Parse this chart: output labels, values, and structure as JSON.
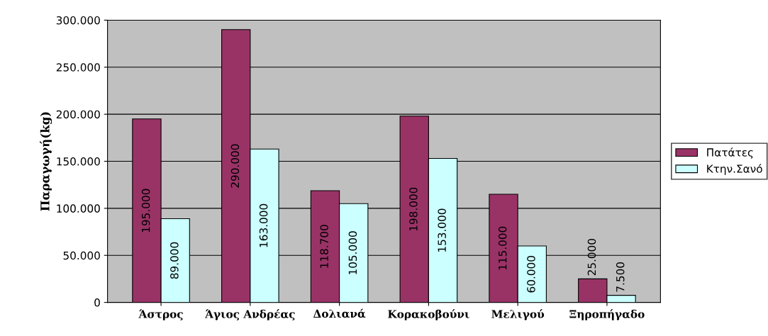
{
  "chart_data": {
    "type": "bar",
    "categories": [
      "Άστρος",
      "Άγιος Ανδρέας",
      "Δολιανά",
      "Κορακοβούνι",
      "Μελιγού",
      "Ξηροπήγαδο"
    ],
    "ylabel": "Παραγωγή(kg)",
    "series": [
      {
        "name": "Πατάτες",
        "color": "#993366",
        "values": [
          195000,
          290000,
          118700,
          198000,
          115000,
          25000
        ],
        "value_labels": [
          "195.000",
          "290.000",
          "118.700",
          "198.000",
          "115.000",
          "25.000"
        ]
      },
      {
        "name": "Κτην.Σανό",
        "color": "#ccffff",
        "values": [
          89000,
          163000,
          105000,
          153000,
          60000,
          7500
        ],
        "value_labels": [
          "89.000",
          "163.000",
          "105.000",
          "153.000",
          "60.000",
          "7.500"
        ]
      }
    ],
    "ylim": [
      0,
      300000
    ],
    "yticks": [
      0,
      {
        "value": 50000,
        "label": "50.000"
      },
      {
        "value": 100000,
        "label": "100.000"
      },
      {
        "value": 150000,
        "label": "150.000"
      },
      {
        "value": 200000,
        "label": "200.000"
      },
      {
        "value": 250000,
        "label": "250.000"
      },
      {
        "value": 300000,
        "label": "300.000"
      }
    ],
    "grid": "y",
    "legend": "right"
  }
}
